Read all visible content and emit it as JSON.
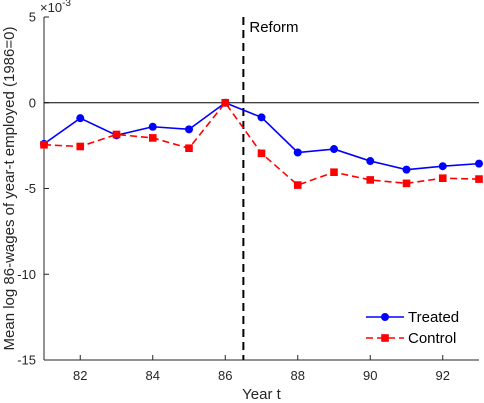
{
  "chart_data": {
    "type": "line",
    "xlabel": "Year t",
    "ylabel": "Mean log 86-wages of year-t employed (1986=0)",
    "xlim": [
      81,
      93
    ],
    "ylim": [
      -15,
      5
    ],
    "y_exponent_label": "×10",
    "y_exponent_power": "-3",
    "xticks": [
      82,
      84,
      86,
      88,
      90,
      92
    ],
    "yticks": [
      5,
      0,
      -5,
      -10,
      -15
    ],
    "zero_line": 0,
    "reform_line_x": 86.5,
    "reform_label": "Reform",
    "legend_position": "bottom-right",
    "series": [
      {
        "name": "Treated",
        "color": "#0000ff",
        "marker": "circle",
        "linestyle": "solid",
        "x": [
          81,
          82,
          83,
          84,
          85,
          86,
          87,
          88,
          89,
          90,
          91,
          92,
          93
        ],
        "values": [
          -2.4,
          -0.9,
          -1.9,
          -1.4,
          -1.55,
          0.0,
          -0.85,
          -2.9,
          -2.7,
          -3.4,
          -3.9,
          -3.7,
          -3.55
        ]
      },
      {
        "name": "Control",
        "color": "#ff0000",
        "marker": "square",
        "linestyle": "dashed",
        "x": [
          81,
          82,
          83,
          84,
          85,
          86,
          87,
          88,
          89,
          90,
          91,
          92,
          93
        ],
        "values": [
          -2.45,
          -2.55,
          -1.85,
          -2.05,
          -2.65,
          0.0,
          -2.95,
          -4.8,
          -4.05,
          -4.5,
          -4.7,
          -4.4,
          -4.45
        ]
      }
    ]
  }
}
